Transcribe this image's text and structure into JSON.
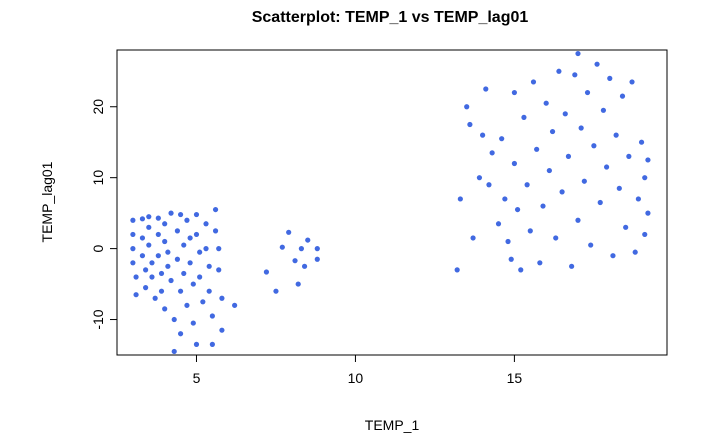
{
  "chart_data": {
    "type": "scatter",
    "title": "Scatterplot: TEMP_1 vs TEMP_lag01",
    "xlabel": "TEMP_1",
    "ylabel": "TEMP_lag01",
    "xlim": [
      2.5,
      19.8
    ],
    "ylim": [
      -15,
      28
    ],
    "xticks": [
      5,
      10,
      15
    ],
    "yticks": [
      -10,
      0,
      10,
      20
    ],
    "grid": false,
    "legend": "none",
    "point_color": "#4169E1",
    "series": [
      {
        "points": [
          [
            3.0,
            4.0
          ],
          [
            3.0,
            2.0
          ],
          [
            3.0,
            0.0
          ],
          [
            3.0,
            -2.0
          ],
          [
            3.1,
            -4.0
          ],
          [
            3.1,
            -6.5
          ],
          [
            3.3,
            4.2
          ],
          [
            3.3,
            1.5
          ],
          [
            3.3,
            -1.0
          ],
          [
            3.4,
            -3.0
          ],
          [
            3.4,
            -5.5
          ],
          [
            3.5,
            4.5
          ],
          [
            3.5,
            3.0
          ],
          [
            3.5,
            0.5
          ],
          [
            3.6,
            -2.0
          ],
          [
            3.6,
            -4.0
          ],
          [
            3.7,
            -7.0
          ],
          [
            3.8,
            4.3
          ],
          [
            3.8,
            2.0
          ],
          [
            3.8,
            -1.0
          ],
          [
            3.9,
            -3.5
          ],
          [
            3.9,
            -6.0
          ],
          [
            4.0,
            -8.5
          ],
          [
            4.0,
            3.5
          ],
          [
            4.0,
            1.0
          ],
          [
            4.1,
            -0.5
          ],
          [
            4.1,
            -2.5
          ],
          [
            4.2,
            -4.5
          ],
          [
            4.2,
            5.0
          ],
          [
            4.3,
            -10.0
          ],
          [
            4.3,
            -14.5
          ],
          [
            4.4,
            2.5
          ],
          [
            4.4,
            -1.5
          ],
          [
            4.5,
            4.8
          ],
          [
            4.5,
            -6.0
          ],
          [
            4.5,
            -12.0
          ],
          [
            4.6,
            0.5
          ],
          [
            4.6,
            -3.5
          ],
          [
            4.7,
            -8.0
          ],
          [
            4.7,
            4.0
          ],
          [
            4.8,
            1.5
          ],
          [
            4.8,
            -2.0
          ],
          [
            4.9,
            -5.0
          ],
          [
            4.9,
            -10.5
          ],
          [
            5.0,
            -13.5
          ],
          [
            5.0,
            4.8
          ],
          [
            5.0,
            2.0
          ],
          [
            5.1,
            -0.5
          ],
          [
            5.1,
            -4.0
          ],
          [
            5.2,
            -7.5
          ],
          [
            5.3,
            3.5
          ],
          [
            5.3,
            0.0
          ],
          [
            5.4,
            -2.5
          ],
          [
            5.4,
            -6.0
          ],
          [
            5.5,
            -9.5
          ],
          [
            5.5,
            -13.5
          ],
          [
            5.6,
            5.5
          ],
          [
            5.6,
            2.5
          ],
          [
            5.7,
            0.0
          ],
          [
            5.7,
            -3.0
          ],
          [
            5.8,
            -7.0
          ],
          [
            5.8,
            -11.5
          ],
          [
            6.2,
            -8.0
          ],
          [
            7.2,
            -3.3
          ],
          [
            7.5,
            -6.0
          ],
          [
            7.7,
            0.2
          ],
          [
            7.9,
            2.3
          ],
          [
            8.1,
            -1.7
          ],
          [
            8.2,
            -5.0
          ],
          [
            8.3,
            0.0
          ],
          [
            8.4,
            -2.5
          ],
          [
            8.5,
            1.2
          ],
          [
            8.8,
            -1.5
          ],
          [
            8.8,
            0.0
          ],
          [
            13.2,
            -3.0
          ],
          [
            13.3,
            7.0
          ],
          [
            13.5,
            20.0
          ],
          [
            13.6,
            17.5
          ],
          [
            13.7,
            1.5
          ],
          [
            13.9,
            10.0
          ],
          [
            14.0,
            16.0
          ],
          [
            14.1,
            22.5
          ],
          [
            14.2,
            9.0
          ],
          [
            14.3,
            13.5
          ],
          [
            14.5,
            3.5
          ],
          [
            14.6,
            15.5
          ],
          [
            14.7,
            7.0
          ],
          [
            14.8,
            1.0
          ],
          [
            14.9,
            -1.5
          ],
          [
            15.0,
            12.0
          ],
          [
            15.0,
            22.0
          ],
          [
            15.1,
            5.5
          ],
          [
            15.2,
            -3.0
          ],
          [
            15.3,
            18.5
          ],
          [
            15.4,
            9.0
          ],
          [
            15.5,
            2.5
          ],
          [
            15.6,
            23.5
          ],
          [
            15.7,
            14.0
          ],
          [
            15.8,
            -2.0
          ],
          [
            15.9,
            6.0
          ],
          [
            16.0,
            20.5
          ],
          [
            16.1,
            11.0
          ],
          [
            16.2,
            16.5
          ],
          [
            16.3,
            1.5
          ],
          [
            16.4,
            25.0
          ],
          [
            16.5,
            8.0
          ],
          [
            16.6,
            19.0
          ],
          [
            16.7,
            13.0
          ],
          [
            16.8,
            -2.5
          ],
          [
            16.9,
            24.5
          ],
          [
            17.0,
            27.5
          ],
          [
            17.0,
            4.0
          ],
          [
            17.1,
            17.0
          ],
          [
            17.2,
            9.5
          ],
          [
            17.3,
            22.0
          ],
          [
            17.4,
            0.5
          ],
          [
            17.5,
            14.5
          ],
          [
            17.6,
            26.0
          ],
          [
            17.7,
            6.5
          ],
          [
            17.8,
            19.5
          ],
          [
            17.9,
            11.5
          ],
          [
            18.0,
            24.0
          ],
          [
            18.1,
            -1.0
          ],
          [
            18.2,
            16.0
          ],
          [
            18.3,
            8.5
          ],
          [
            18.4,
            21.5
          ],
          [
            18.5,
            3.0
          ],
          [
            18.6,
            13.0
          ],
          [
            18.7,
            23.5
          ],
          [
            18.8,
            -0.5
          ],
          [
            18.9,
            7.0
          ],
          [
            19.0,
            15.0
          ],
          [
            19.1,
            2.0
          ],
          [
            19.1,
            10.0
          ],
          [
            19.2,
            5.0
          ],
          [
            19.2,
            12.5
          ]
        ]
      }
    ]
  }
}
